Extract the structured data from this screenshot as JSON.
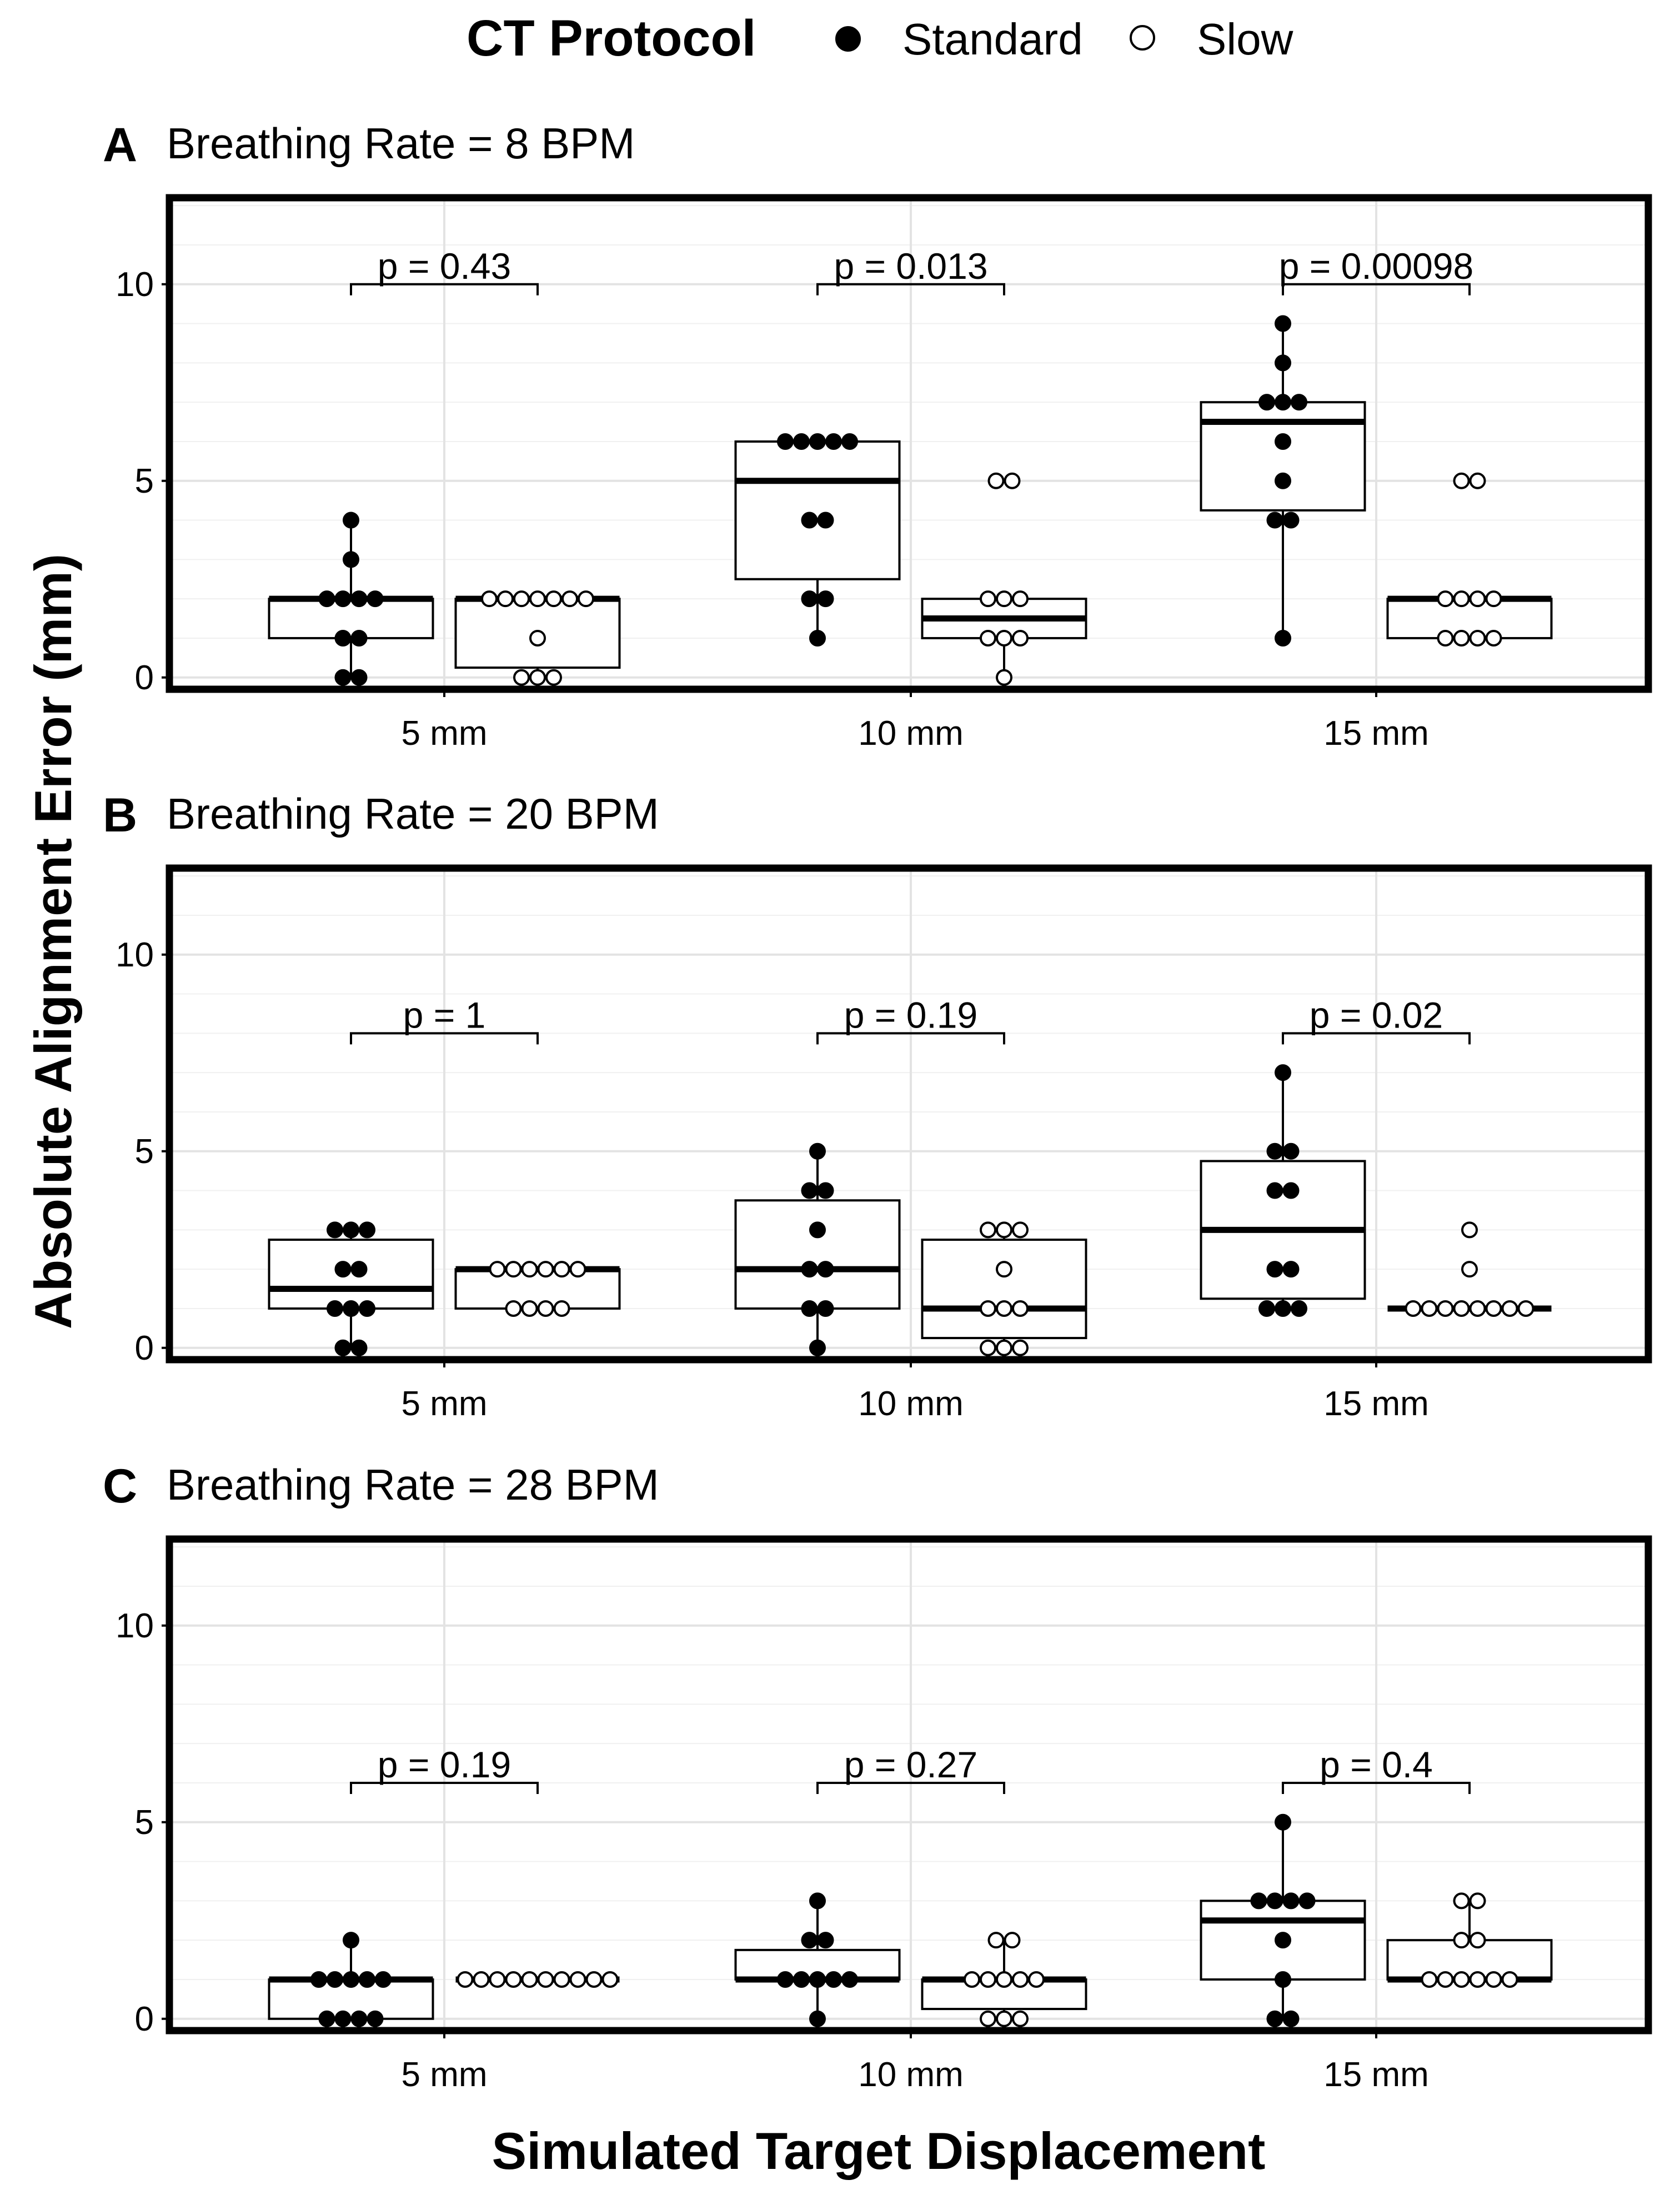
{
  "chart_data": {
    "type": "box",
    "legend": {
      "title": "CT Protocol",
      "entries": [
        {
          "label": "Standard",
          "fill": "#000000"
        },
        {
          "label": "Slow",
          "fill": "#ffffff"
        }
      ],
      "placement": "top"
    },
    "xlabel": "Simulated Target Displacement",
    "ylabel": "Absolute Alignment Error (mm)",
    "categories": [
      "5 mm",
      "10 mm",
      "15 mm"
    ],
    "ylim": [
      -0.3,
      12.2
    ],
    "yticks": [
      0,
      5,
      10
    ],
    "grid": true,
    "panels": [
      {
        "letter": "A",
        "title": "Breathing Rate = 8 BPM",
        "groups": [
          {
            "category": "5 mm",
            "p_label": "p = 0.43",
            "p_y": 10,
            "standard": {
              "box": [
                1,
                2,
                2
              ],
              "whisker": [
                0,
                4
              ],
              "points": [
                0,
                0,
                1,
                1,
                2,
                2,
                2,
                2,
                3,
                4
              ]
            },
            "slow": {
              "box": [
                0.25,
                2,
                2
              ],
              "whisker": [
                0,
                2
              ],
              "points": [
                0,
                0,
                0,
                1,
                2,
                2,
                2,
                2,
                2,
                2,
                2
              ]
            }
          },
          {
            "category": "10 mm",
            "p_label": "p = 0.013",
            "p_y": 10,
            "standard": {
              "box": [
                2.5,
                5,
                6
              ],
              "whisker": [
                1,
                6
              ],
              "points": [
                1,
                2,
                2,
                4,
                4,
                6,
                6,
                6,
                6,
                6
              ]
            },
            "slow": {
              "box": [
                1,
                1.5,
                2
              ],
              "whisker": [
                0,
                2
              ],
              "points": [
                0,
                1,
                1,
                1,
                2,
                2,
                2,
                5,
                5
              ]
            }
          },
          {
            "category": "15 mm",
            "p_label": "p = 0.00098",
            "p_y": 10,
            "standard": {
              "box": [
                4.25,
                6.5,
                7
              ],
              "whisker": [
                1,
                9
              ],
              "points": [
                1,
                4,
                4,
                5,
                6,
                7,
                7,
                7,
                8,
                9
              ]
            },
            "slow": {
              "box": [
                1,
                2,
                2
              ],
              "whisker": [
                1,
                2
              ],
              "points": [
                1,
                1,
                1,
                1,
                2,
                2,
                2,
                2,
                5,
                5
              ]
            }
          }
        ]
      },
      {
        "letter": "B",
        "title": "Breathing Rate = 20 BPM",
        "groups": [
          {
            "category": "5 mm",
            "p_label": "p = 1",
            "p_y": 8,
            "standard": {
              "box": [
                1,
                1.5,
                2.75
              ],
              "whisker": [
                0,
                3
              ],
              "points": [
                0,
                0,
                1,
                1,
                1,
                2,
                2,
                3,
                3,
                3
              ]
            },
            "slow": {
              "box": [
                1,
                2,
                2
              ],
              "whisker": [
                1,
                2
              ],
              "points": [
                1,
                1,
                1,
                1,
                2,
                2,
                2,
                2,
                2,
                2
              ]
            }
          },
          {
            "category": "10 mm",
            "p_label": "p = 0.19",
            "p_y": 8,
            "standard": {
              "box": [
                1,
                2,
                3.75
              ],
              "whisker": [
                0,
                5
              ],
              "points": [
                0,
                1,
                1,
                2,
                2,
                3,
                4,
                4,
                5
              ]
            },
            "slow": {
              "box": [
                0.25,
                1,
                2.75
              ],
              "whisker": [
                0,
                3
              ],
              "points": [
                0,
                0,
                0,
                1,
                1,
                1,
                2,
                3,
                3,
                3
              ]
            }
          },
          {
            "category": "15 mm",
            "p_label": "p = 0.02",
            "p_y": 8,
            "standard": {
              "box": [
                1.25,
                3,
                4.75
              ],
              "whisker": [
                1,
                7
              ],
              "points": [
                1,
                1,
                1,
                2,
                2,
                4,
                4,
                5,
                5,
                7
              ]
            },
            "slow": {
              "box": [
                1,
                1,
                1
              ],
              "whisker": [
                1,
                1
              ],
              "points": [
                1,
                1,
                1,
                1,
                1,
                1,
                1,
                1,
                2,
                3
              ]
            }
          }
        ]
      },
      {
        "letter": "C",
        "title": "Breathing Rate = 28 BPM",
        "groups": [
          {
            "category": "5 mm",
            "p_label": "p = 0.19",
            "p_y": 6,
            "standard": {
              "box": [
                0,
                1,
                1
              ],
              "whisker": [
                0,
                2
              ],
              "points": [
                0,
                0,
                0,
                0,
                1,
                1,
                1,
                1,
                1,
                2
              ]
            },
            "slow": {
              "box": [
                1,
                1,
                1
              ],
              "whisker": [
                1,
                1
              ],
              "points": [
                1,
                1,
                1,
                1,
                1,
                1,
                1,
                1,
                1,
                1
              ]
            }
          },
          {
            "category": "10 mm",
            "p_label": "p = 0.27",
            "p_y": 6,
            "standard": {
              "box": [
                1,
                1,
                1.75
              ],
              "whisker": [
                0,
                3
              ],
              "points": [
                0,
                1,
                1,
                1,
                1,
                1,
                2,
                2,
                3
              ]
            },
            "slow": {
              "box": [
                0.25,
                1,
                1
              ],
              "whisker": [
                0,
                2
              ],
              "points": [
                0,
                0,
                0,
                1,
                1,
                1,
                1,
                1,
                2,
                2
              ]
            }
          },
          {
            "category": "15 mm",
            "p_label": "p = 0.4",
            "p_y": 6,
            "standard": {
              "box": [
                1,
                2.5,
                3
              ],
              "whisker": [
                0,
                5
              ],
              "points": [
                0,
                0,
                1,
                2,
                3,
                3,
                3,
                3,
                5
              ]
            },
            "slow": {
              "box": [
                1,
                1,
                2
              ],
              "whisker": [
                1,
                3
              ],
              "points": [
                1,
                1,
                1,
                1,
                1,
                1,
                2,
                2,
                3,
                3
              ]
            }
          }
        ]
      }
    ]
  }
}
